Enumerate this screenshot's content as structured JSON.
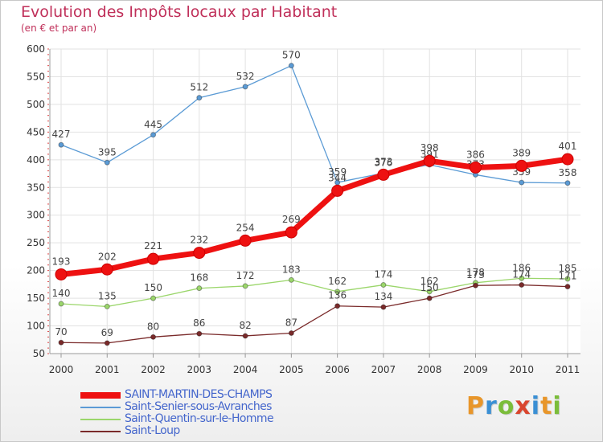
{
  "chart_data": {
    "type": "line",
    "title": "Evolution des Impôts locaux par Habitant",
    "subtitle": "(en € et par an)",
    "xlabel": "",
    "ylabel": "",
    "ylim": [
      50,
      600
    ],
    "yticks": [
      50,
      100,
      150,
      200,
      250,
      300,
      350,
      400,
      450,
      500,
      550,
      600
    ],
    "categories": [
      "2000",
      "2001",
      "2002",
      "2003",
      "2004",
      "2005",
      "2006",
      "2007",
      "2008",
      "2009",
      "2010",
      "2011"
    ],
    "legend_position": "bottom-left",
    "series": [
      {
        "name": "Saint-Senier-sous-Avranches",
        "color": "#5b9bd5",
        "values": [
          427,
          395,
          445,
          512,
          532,
          570,
          359,
          376,
          391,
          373,
          359,
          358
        ],
        "labels": [
          "427",
          "395",
          "445",
          "512",
          "532",
          "570",
          "359",
          "376",
          "391",
          "373",
          "359",
          "358"
        ]
      },
      {
        "name": "Saint-Quentin-sur-le-Homme",
        "color": "#9bd66b",
        "values": [
          140,
          135,
          150,
          168,
          172,
          183,
          162,
          174,
          162,
          178,
          186,
          185
        ],
        "labels": [
          "140",
          "135",
          "150",
          "168",
          "172",
          "183",
          "162",
          "174",
          "162",
          "178",
          "186",
          "185"
        ]
      },
      {
        "name": "Saint-Loup",
        "color": "#7a2a2a",
        "values": [
          70,
          69,
          80,
          86,
          82,
          87,
          136,
          134,
          150,
          173,
          174,
          171
        ],
        "labels": [
          "70",
          "69",
          "80",
          "86",
          "82",
          "87",
          "136",
          "134",
          "150",
          "173",
          "174",
          "171"
        ]
      },
      {
        "name": "SAINT-MARTIN-DES-CHAMPS",
        "color": "#ee1111",
        "values": [
          193,
          202,
          221,
          232,
          254,
          269,
          344,
          373,
          398,
          386,
          389,
          401
        ],
        "labels": [
          "193",
          "202",
          "221",
          "232",
          "254",
          "269",
          "344",
          "373",
          "398",
          "386",
          "389",
          "401"
        ]
      }
    ]
  },
  "legend": {
    "items": [
      "SAINT-MARTIN-DES-CHAMPS",
      "Saint-Senier-sous-Avranches",
      "Saint-Quentin-sur-le-Homme",
      "Saint-Loup"
    ]
  },
  "logo": {
    "letters": [
      "P",
      "r",
      "o",
      "x",
      "i",
      "t",
      "i"
    ]
  }
}
